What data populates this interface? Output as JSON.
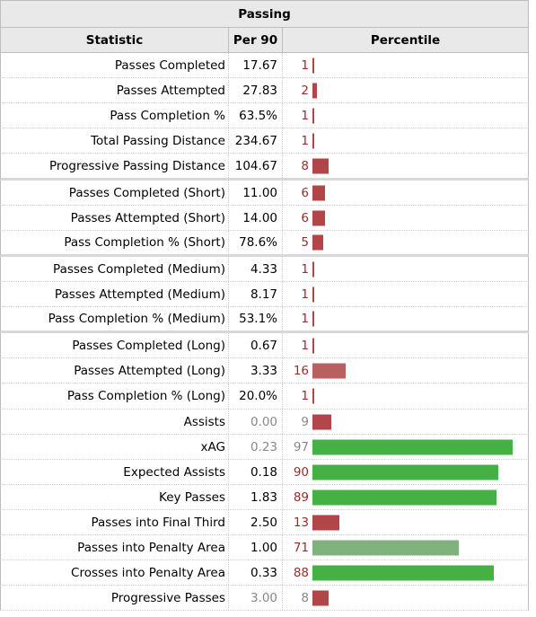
{
  "table": {
    "title": "Passing",
    "headers": {
      "statistic": "Statistic",
      "per90": "Per 90",
      "percentile": "Percentile"
    },
    "rows": [
      {
        "stat": "Passes Completed",
        "per90": "17.67",
        "pct": 1,
        "color": "red",
        "sep": false,
        "grey": false
      },
      {
        "stat": "Passes Attempted",
        "per90": "27.83",
        "pct": 2,
        "color": "red",
        "sep": false,
        "grey": false
      },
      {
        "stat": "Pass Completion %",
        "per90": "63.5%",
        "pct": 1,
        "color": "red",
        "sep": false,
        "grey": false
      },
      {
        "stat": "Total Passing Distance",
        "per90": "234.67",
        "pct": 1,
        "color": "red",
        "sep": false,
        "grey": false
      },
      {
        "stat": "Progressive Passing Distance",
        "per90": "104.67",
        "pct": 8,
        "color": "red",
        "sep": true,
        "grey": false
      },
      {
        "stat": "Passes Completed (Short)",
        "per90": "11.00",
        "pct": 6,
        "color": "red",
        "sep": false,
        "grey": false
      },
      {
        "stat": "Passes Attempted (Short)",
        "per90": "14.00",
        "pct": 6,
        "color": "red",
        "sep": false,
        "grey": false
      },
      {
        "stat": "Pass Completion % (Short)",
        "per90": "78.6%",
        "pct": 5,
        "color": "red",
        "sep": true,
        "grey": false
      },
      {
        "stat": "Passes Completed (Medium)",
        "per90": "4.33",
        "pct": 1,
        "color": "red",
        "sep": false,
        "grey": false
      },
      {
        "stat": "Passes Attempted (Medium)",
        "per90": "8.17",
        "pct": 1,
        "color": "red",
        "sep": false,
        "grey": false
      },
      {
        "stat": "Pass Completion % (Medium)",
        "per90": "53.1%",
        "pct": 1,
        "color": "red",
        "sep": true,
        "grey": false
      },
      {
        "stat": "Passes Completed (Long)",
        "per90": "0.67",
        "pct": 1,
        "color": "red",
        "sep": false,
        "grey": false
      },
      {
        "stat": "Passes Attempted (Long)",
        "per90": "3.33",
        "pct": 16,
        "color": "lred",
        "sep": false,
        "grey": false
      },
      {
        "stat": "Pass Completion % (Long)",
        "per90": "20.0%",
        "pct": 1,
        "color": "red",
        "sep": false,
        "grey": false
      },
      {
        "stat": "Assists",
        "per90": "0.00",
        "pct": 9,
        "color": "red",
        "sep": false,
        "grey": true
      },
      {
        "stat": "xAG",
        "per90": "0.23",
        "pct": 97,
        "color": "green",
        "sep": false,
        "grey": true
      },
      {
        "stat": "Expected Assists",
        "per90": "0.18",
        "pct": 90,
        "color": "green",
        "sep": false,
        "grey": false
      },
      {
        "stat": "Key Passes",
        "per90": "1.83",
        "pct": 89,
        "color": "green",
        "sep": false,
        "grey": false
      },
      {
        "stat": "Passes into Final Third",
        "per90": "2.50",
        "pct": 13,
        "color": "red",
        "sep": false,
        "grey": false
      },
      {
        "stat": "Passes into Penalty Area",
        "per90": "1.00",
        "pct": 71,
        "color": "lgreen",
        "sep": false,
        "grey": false
      },
      {
        "stat": "Crosses into Penalty Area",
        "per90": "0.33",
        "pct": 88,
        "color": "green",
        "sep": false,
        "grey": false
      },
      {
        "stat": "Progressive Passes",
        "per90": "3.00",
        "pct": 8,
        "color": "red",
        "sep": false,
        "grey": true
      }
    ]
  }
}
